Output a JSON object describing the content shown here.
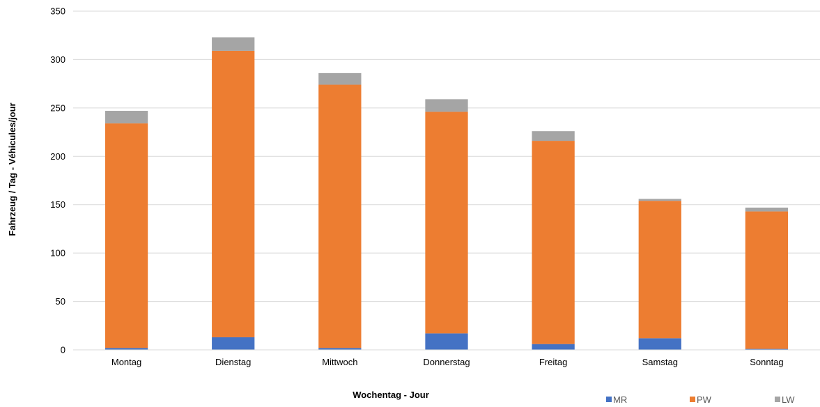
{
  "chart_data": {
    "type": "bar",
    "stacked": true,
    "title": "",
    "xlabel": "Wochentag - Jour",
    "ylabel": "Fahrzeug / Tag - Véhicules/jour",
    "ylim": [
      0,
      350
    ],
    "yticks": [
      0,
      50,
      100,
      150,
      200,
      250,
      300,
      350
    ],
    "grid": true,
    "legend_position": "bottom-right",
    "categories": [
      "Montag",
      "Dienstag",
      "Mittwoch",
      "Donnerstag",
      "Freitag",
      "Samstag",
      "Sonntag"
    ],
    "series": [
      {
        "name": "MR",
        "color": "#4472C4",
        "values": [
          2,
          13,
          2,
          17,
          6,
          12,
          1
        ]
      },
      {
        "name": "PW",
        "color": "#ED7D31",
        "values": [
          232,
          296,
          272,
          229,
          210,
          142,
          142
        ]
      },
      {
        "name": "LW",
        "color": "#A5A5A5",
        "values": [
          13,
          14,
          12,
          13,
          10,
          2,
          4
        ]
      }
    ]
  }
}
